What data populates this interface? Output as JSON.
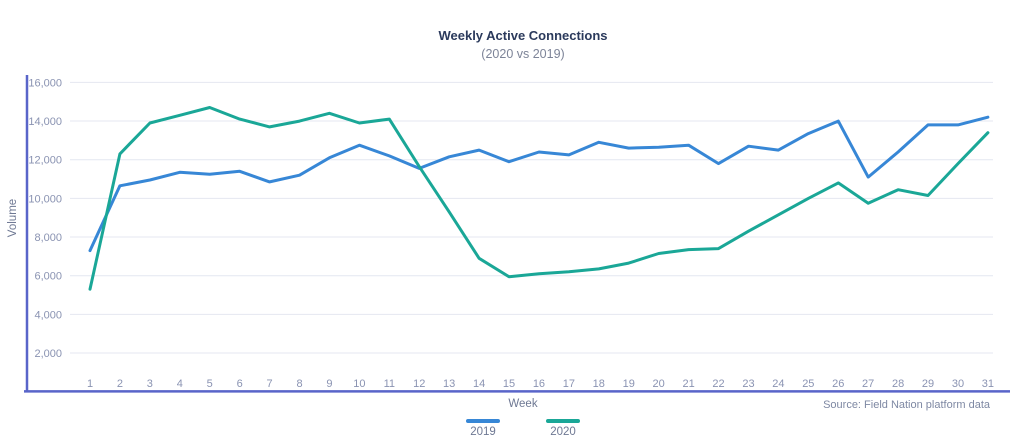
{
  "header": {
    "title": "Weekly Active Connections",
    "subtitle": "(2020 vs 2019)"
  },
  "footer": {
    "source": "Source: Field Nation platform data"
  },
  "legend": {
    "items": [
      {
        "label": "2019",
        "color": "#3787d6"
      },
      {
        "label": "2020",
        "color": "#1aa797"
      }
    ]
  },
  "colors": {
    "axis": "#5965c9",
    "grid": "#e4e7f1",
    "tick_text": "#8a93b2",
    "line_2019": "#3787d6",
    "line_2020": "#1aa797"
  },
  "chart_data": {
    "type": "line",
    "title": "Weekly Active Connections",
    "subtitle": "(2020 vs 2019)",
    "xlabel": "Week",
    "ylabel": "Volume",
    "x": [
      1,
      2,
      3,
      4,
      5,
      6,
      7,
      8,
      9,
      10,
      11,
      12,
      13,
      14,
      15,
      16,
      17,
      18,
      19,
      20,
      21,
      22,
      23,
      24,
      25,
      26,
      27,
      28,
      29,
      30,
      31
    ],
    "series": [
      {
        "name": "2019",
        "color": "#3787d6",
        "values": [
          7300,
          10650,
          10950,
          11350,
          11250,
          11400,
          10850,
          11200,
          12100,
          12750,
          12200,
          11550,
          12150,
          12500,
          11900,
          12400,
          12250,
          12900,
          12600,
          12650,
          12750,
          11800,
          12700,
          12500,
          13350,
          14000,
          11100,
          12400,
          13800,
          13800,
          14200
        ]
      },
      {
        "name": "2020",
        "color": "#1aa797",
        "values": [
          5300,
          12300,
          13900,
          14300,
          14700,
          14100,
          13700,
          14000,
          14400,
          13900,
          14100,
          11650,
          9300,
          6900,
          5950,
          6100,
          6200,
          6350,
          6650,
          7150,
          7350,
          7400,
          8300,
          9150,
          10000,
          10800,
          9750,
          10450,
          10150,
          11800,
          13400
        ]
      }
    ],
    "yticks": [
      2000,
      4000,
      6000,
      8000,
      10000,
      12000,
      14000,
      16000
    ],
    "ytick_labels": [
      "2,000",
      "4,000",
      "6,000",
      "8,000",
      "10,000",
      "12,000",
      "14,000",
      "16,000"
    ],
    "ylim": [
      0,
      16400
    ],
    "grid": true,
    "legend_position": "bottom"
  }
}
